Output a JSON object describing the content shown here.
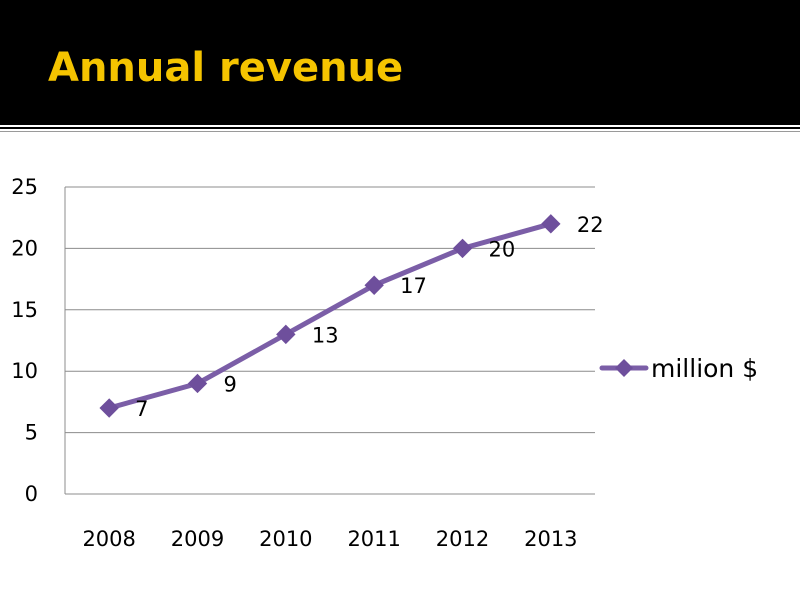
{
  "slide": {
    "title": "Annual revenue"
  },
  "colors": {
    "title_bar": "#000000",
    "title_text": "#f5c400",
    "series_line": "#7b5ea7",
    "marker": "#6e4f9c",
    "gridline": "#8c8c8c"
  },
  "chart_data": {
    "type": "line",
    "title": "",
    "xlabel": "",
    "ylabel": "",
    "categories": [
      "2008",
      "2009",
      "2010",
      "2011",
      "2012",
      "2013"
    ],
    "series": [
      {
        "name": "million $",
        "values": [
          7,
          9,
          13,
          17,
          20,
          22
        ],
        "marker": "diamond",
        "data_labels": true
      }
    ],
    "ylim": [
      0,
      25
    ],
    "yticks": [
      0,
      5,
      10,
      15,
      20,
      25
    ],
    "grid": true,
    "legend": "right"
  }
}
